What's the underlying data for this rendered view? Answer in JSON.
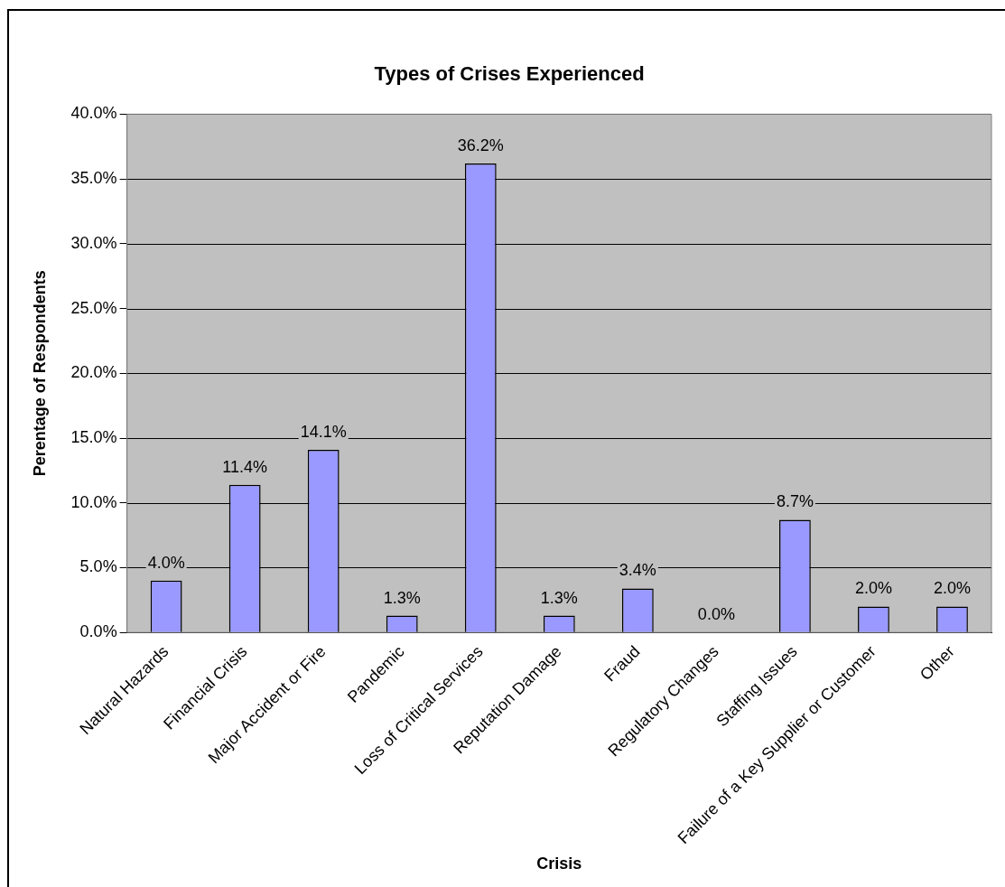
{
  "chart_data": {
    "type": "bar",
    "title": "Types of Crises Experienced",
    "xlabel": "Crisis",
    "ylabel": "Perentage of Respondents",
    "categories": [
      "Natural Hazards",
      "Financial Crisis",
      "Major Accident or Fire",
      "Pandemic",
      "Loss of Critical Services",
      "Reputation Damage",
      "Fraud",
      "Regulatory Changes",
      "Staffing Issues",
      "Failure of a Key Supplier or Customer",
      "Other"
    ],
    "values": [
      4.0,
      11.4,
      14.1,
      1.3,
      36.2,
      1.3,
      3.4,
      0.0,
      8.7,
      2.0,
      2.0
    ],
    "value_labels": [
      "4.0%",
      "11.4%",
      "14.1%",
      "1.3%",
      "36.2%",
      "1.3%",
      "3.4%",
      "0.0%",
      "8.7%",
      "2.0%",
      "2.0%"
    ],
    "color": "#9999ff",
    "ylim": [
      0,
      40
    ],
    "yticks": [
      {
        "value": 0,
        "label": "0.0%"
      },
      {
        "value": 5,
        "label": "5.0%"
      },
      {
        "value": 10,
        "label": "10.0%"
      },
      {
        "value": 15,
        "label": "15.0%"
      },
      {
        "value": 20,
        "label": "20.0%"
      },
      {
        "value": 25,
        "label": "25.0%"
      },
      {
        "value": 30,
        "label": "30.0%"
      },
      {
        "value": 35,
        "label": "35.0%"
      },
      {
        "value": 40,
        "label": "40.0%"
      }
    ],
    "grid": "y",
    "legend": false
  }
}
